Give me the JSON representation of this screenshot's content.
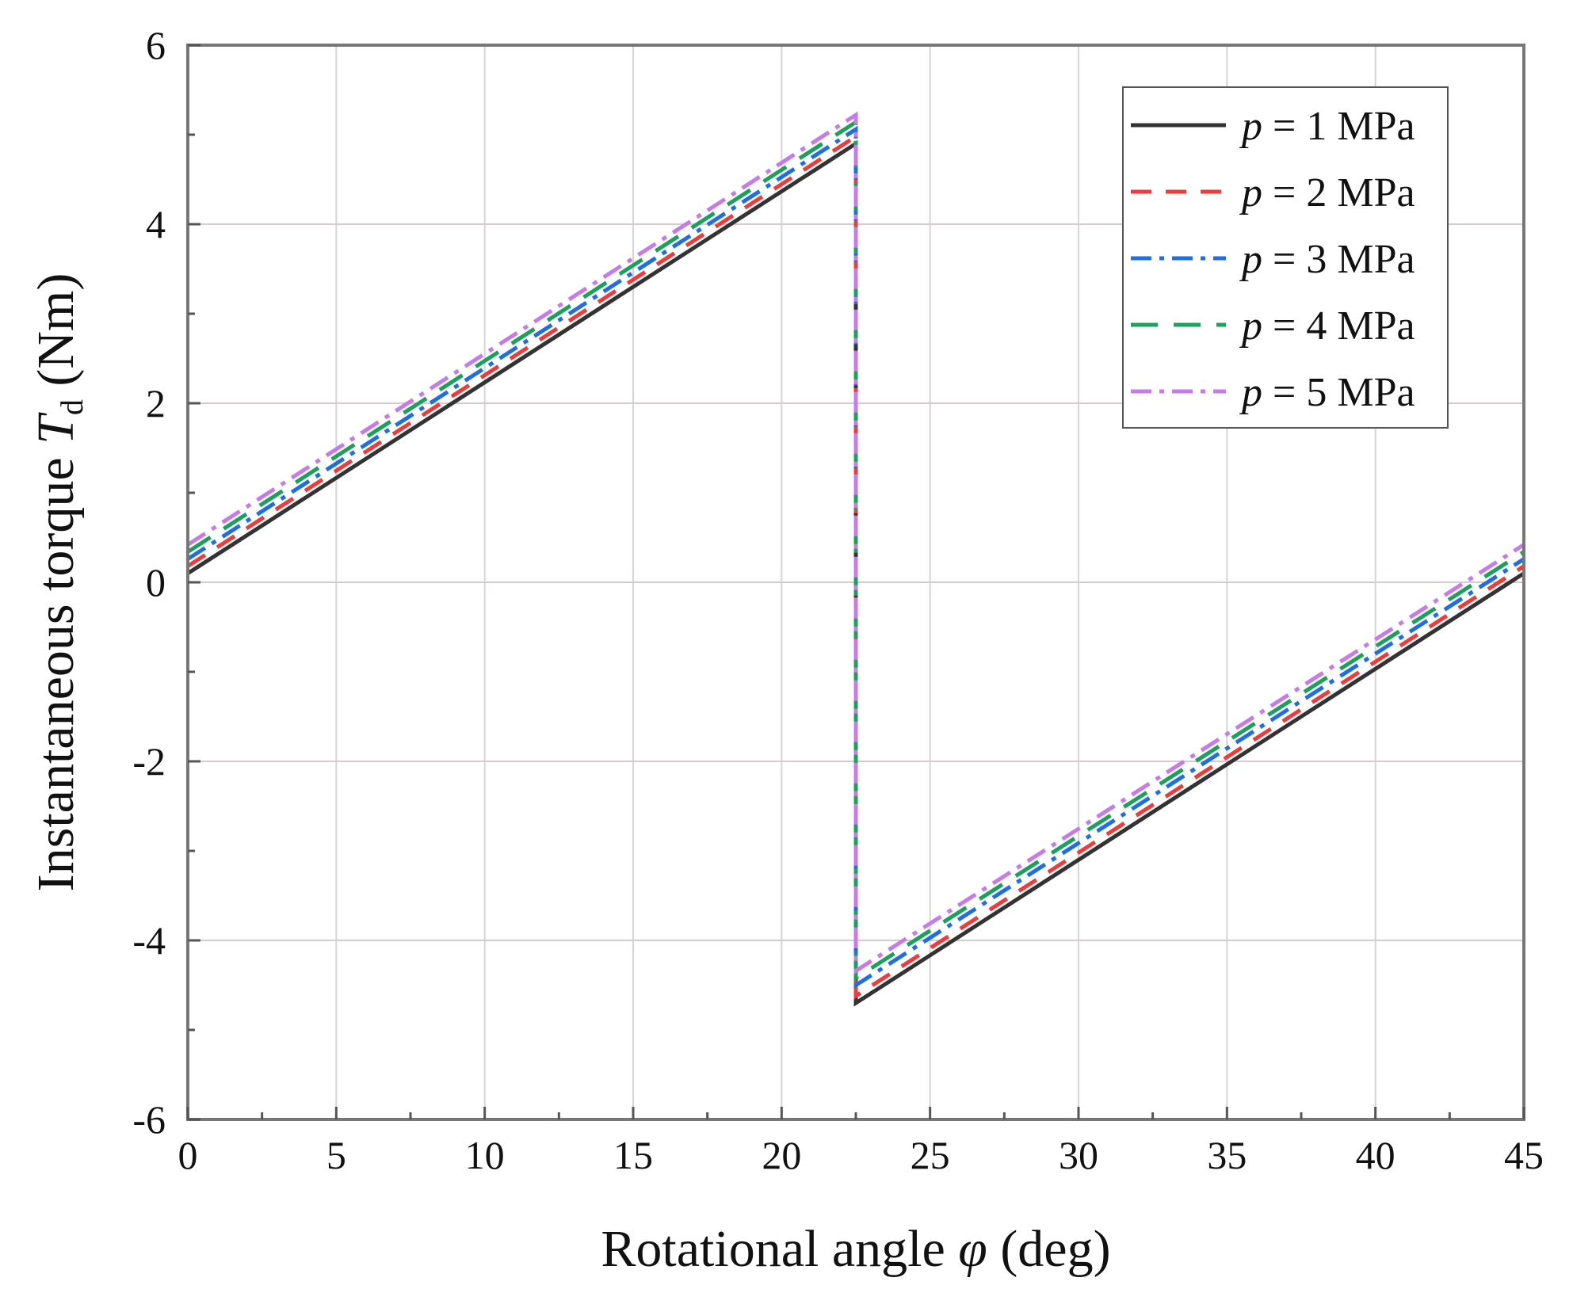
{
  "chart_data": {
    "type": "line",
    "title": "",
    "xlabel": {
      "prefix": "Rotational angle ",
      "symbol": "φ",
      "suffix": " (deg)"
    },
    "ylabel": {
      "prefix": "Instantaneous torque ",
      "symbol": "T",
      "subscript": "d",
      "suffix": " (Nm)"
    },
    "xlim": [
      0,
      45
    ],
    "ylim": [
      -6,
      6
    ],
    "xticks": [
      0,
      5,
      10,
      15,
      20,
      25,
      30,
      35,
      40,
      45
    ],
    "yticks": [
      -6,
      -4,
      -2,
      0,
      2,
      4,
      6
    ],
    "xtick_labels": [
      "0",
      "5",
      "10",
      "15",
      "20",
      "25",
      "30",
      "35",
      "40",
      "45"
    ],
    "ytick_labels": [
      "-6",
      "-4",
      "-2",
      "0",
      "2",
      "4",
      "6"
    ],
    "grid": true,
    "legend_position": "top-right",
    "series": [
      {
        "name": "p = 1 MPa",
        "symbol": "p",
        "label": " = 1 MPa",
        "color": "#333333",
        "dash": "solid",
        "x": [
          0,
          22.5,
          22.5,
          45
        ],
        "y": [
          0.1,
          4.9,
          -4.7,
          0.1
        ]
      },
      {
        "name": "p = 2 MPa",
        "symbol": "p",
        "label": " = 2 MPa",
        "color": "#ee3b3b",
        "dash": "dash",
        "x": [
          0,
          22.5,
          22.5,
          45
        ],
        "y": [
          0.18,
          4.98,
          -4.62,
          0.18
        ]
      },
      {
        "name": "p = 3 MPa",
        "symbol": "p",
        "label": " = 3 MPa",
        "color": "#1f6fe0",
        "dash": "dashdot",
        "x": [
          0,
          22.5,
          22.5,
          45
        ],
        "y": [
          0.26,
          5.06,
          -4.5,
          0.26
        ]
      },
      {
        "name": "p = 4 MPa",
        "symbol": "p",
        "label": " = 4 MPa",
        "color": "#1aa15c",
        "dash": "longdash",
        "x": [
          0,
          22.5,
          22.5,
          45
        ],
        "y": [
          0.34,
          5.14,
          -4.42,
          0.34
        ]
      },
      {
        "name": "p = 5 MPa",
        "symbol": "p",
        "label": " = 5 MPa",
        "color": "#c77be8",
        "dash": "dashdot",
        "x": [
          0,
          22.5,
          22.5,
          45
        ],
        "y": [
          0.42,
          5.22,
          -4.34,
          0.42
        ]
      }
    ]
  }
}
